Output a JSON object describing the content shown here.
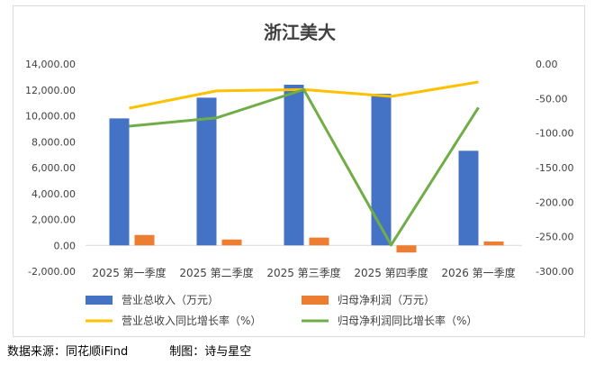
{
  "chart_data": {
    "type": "bar",
    "title": "浙江美大",
    "categories": [
      "2025 第一季度",
      "2025 第二季度",
      "2025 第三季度",
      "2025 第四季度",
      "2026 第一季度"
    ],
    "series": [
      {
        "name": "营业总收入（万元）",
        "type": "bar",
        "axis": "left",
        "color": "#4472C4",
        "values": [
          9800,
          11400,
          12400,
          11700,
          7300
        ]
      },
      {
        "name": "归母净利润（万元）",
        "type": "bar",
        "axis": "left",
        "color": "#ED7D31",
        "values": [
          800,
          450,
          600,
          -550,
          300
        ]
      },
      {
        "name": "营业总收入同比增长率（%）",
        "type": "line",
        "axis": "right",
        "color": "#FFC000",
        "values": [
          -64,
          -39,
          -37,
          -47,
          -26
        ]
      },
      {
        "name": "归母净利润同比增长率（%）",
        "type": "line",
        "axis": "right",
        "color": "#70AD47",
        "values": [
          -90,
          -78,
          -37,
          -262,
          -63
        ]
      }
    ],
    "y_left": {
      "min": -2000,
      "max": 14000,
      "ticks": [
        "-2,000.00",
        "0.00",
        "2,000.00",
        "4,000.00",
        "6,000.00",
        "8,000.00",
        "10,000.00",
        "12,000.00",
        "14,000.00"
      ]
    },
    "y_right": {
      "min": -300,
      "max": 0,
      "ticks": [
        "-300.00",
        "-250.00",
        "-200.00",
        "-150.00",
        "-100.00",
        "-50.00",
        "0.00"
      ]
    },
    "legend_position": "bottom",
    "grid": false
  },
  "footer": {
    "source": "数据来源：同花顺iFind",
    "author": "制图：诗与星空"
  }
}
